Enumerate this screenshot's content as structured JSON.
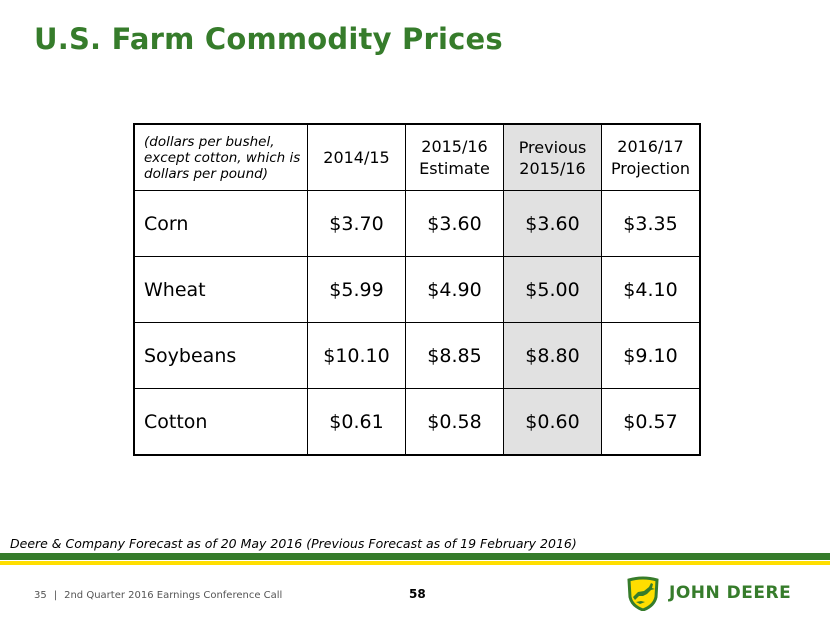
{
  "title": "U.S. Farm Commodity Prices",
  "table": {
    "header": {
      "units": "(dollars per bushel, except cotton, which is dollars per pound)",
      "columns": [
        {
          "line1": "2014/15",
          "line2": ""
        },
        {
          "line1": "2015/16",
          "line2": "Estimate"
        },
        {
          "line1": "Previous",
          "line2": "2015/16"
        },
        {
          "line1": "2016/17",
          "line2": "Projection"
        }
      ]
    },
    "rows": [
      {
        "label": "Corn",
        "values": [
          "$3.70",
          "$3.60",
          "$3.60",
          "$3.35"
        ]
      },
      {
        "label": "Wheat",
        "values": [
          "$5.99",
          "$4.90",
          "$5.00",
          "$4.10"
        ]
      },
      {
        "label": "Soybeans",
        "values": [
          "$10.10",
          "$8.85",
          "$8.80",
          "$9.10"
        ]
      },
      {
        "label": "Cotton",
        "values": [
          "$0.61",
          "$0.58",
          "$0.60",
          "$0.57"
        ]
      }
    ]
  },
  "footnote": "Deere & Company Forecast as of 20 May 2016 (Previous Forecast as of 19 February 2016)",
  "footer": {
    "slide_number": "35",
    "separator": "|",
    "event": "2nd Quarter 2016 Earnings Conference Call",
    "page_number": "58"
  },
  "brand": {
    "name": "John Deere",
    "wordmark": "JOHN DEERE",
    "colors": {
      "green": "#367c2b",
      "yellow": "#ffde00",
      "highlight": "#e1e1e1"
    }
  }
}
